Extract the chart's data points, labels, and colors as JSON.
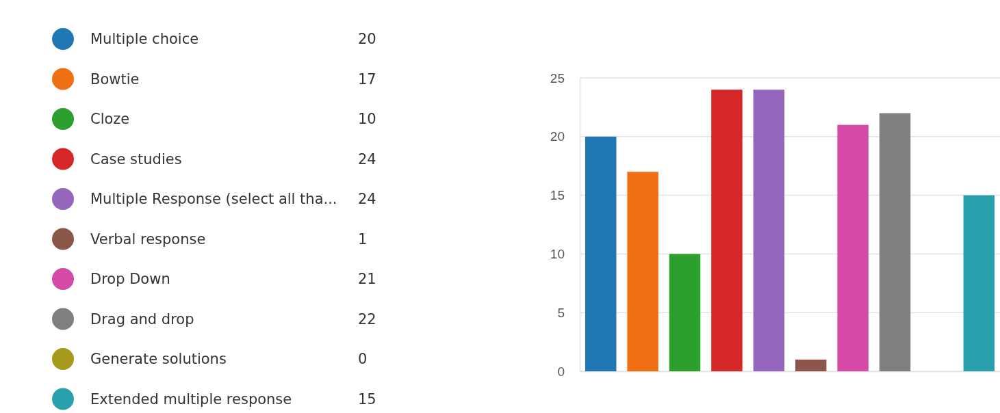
{
  "chart_data": {
    "type": "bar",
    "categories": [
      null,
      null,
      null,
      null,
      null,
      null,
      null,
      null,
      null,
      null
    ],
    "series": [
      {
        "name": "Multiple choice",
        "color": "#1f77b4",
        "values": [
          20,
          null,
          null,
          null,
          null,
          null,
          null,
          null,
          null,
          null
        ]
      },
      {
        "name": "Bowtie",
        "color": "#ee7013",
        "values": [
          null,
          17,
          null,
          null,
          null,
          null,
          null,
          null,
          null,
          null
        ]
      },
      {
        "name": "Cloze",
        "color": "#2ca02c",
        "values": [
          null,
          null,
          10,
          null,
          null,
          null,
          null,
          null,
          null,
          null
        ]
      },
      {
        "name": "Case studies",
        "color": "#d62728",
        "values": [
          null,
          null,
          null,
          24,
          null,
          null,
          null,
          null,
          null,
          null
        ]
      },
      {
        "name": "Multiple Response (select all tha...",
        "color": "#9467bd",
        "values": [
          null,
          null,
          null,
          null,
          24,
          null,
          null,
          null,
          null,
          null
        ]
      },
      {
        "name": "Verbal response",
        "color": "#8c564b",
        "values": [
          null,
          null,
          null,
          null,
          null,
          1,
          null,
          null,
          null,
          null
        ]
      },
      {
        "name": "Drop Down",
        "color": "#d44aa6",
        "values": [
          null,
          null,
          null,
          null,
          null,
          null,
          21,
          null,
          null,
          null
        ]
      },
      {
        "name": "Drag and drop",
        "color": "#7f7f7f",
        "values": [
          null,
          null,
          null,
          null,
          null,
          null,
          null,
          22,
          null,
          null
        ]
      },
      {
        "name": "Generate solutions",
        "color": "#a59a1b",
        "values": [
          null,
          null,
          null,
          null,
          null,
          null,
          null,
          null,
          0,
          null
        ]
      },
      {
        "name": "Extended multiple response",
        "color": "#2aa0ac",
        "values": [
          null,
          null,
          null,
          null,
          null,
          null,
          null,
          null,
          null,
          15
        ]
      }
    ],
    "annotations": [
      "20",
      "17",
      "10",
      "24",
      "24",
      "1",
      "21",
      "22",
      "0",
      "15"
    ],
    "ylim": [
      0,
      25
    ],
    "yticks": [
      0,
      5,
      10,
      15,
      20,
      25
    ],
    "grid": "y",
    "legend": "left"
  }
}
